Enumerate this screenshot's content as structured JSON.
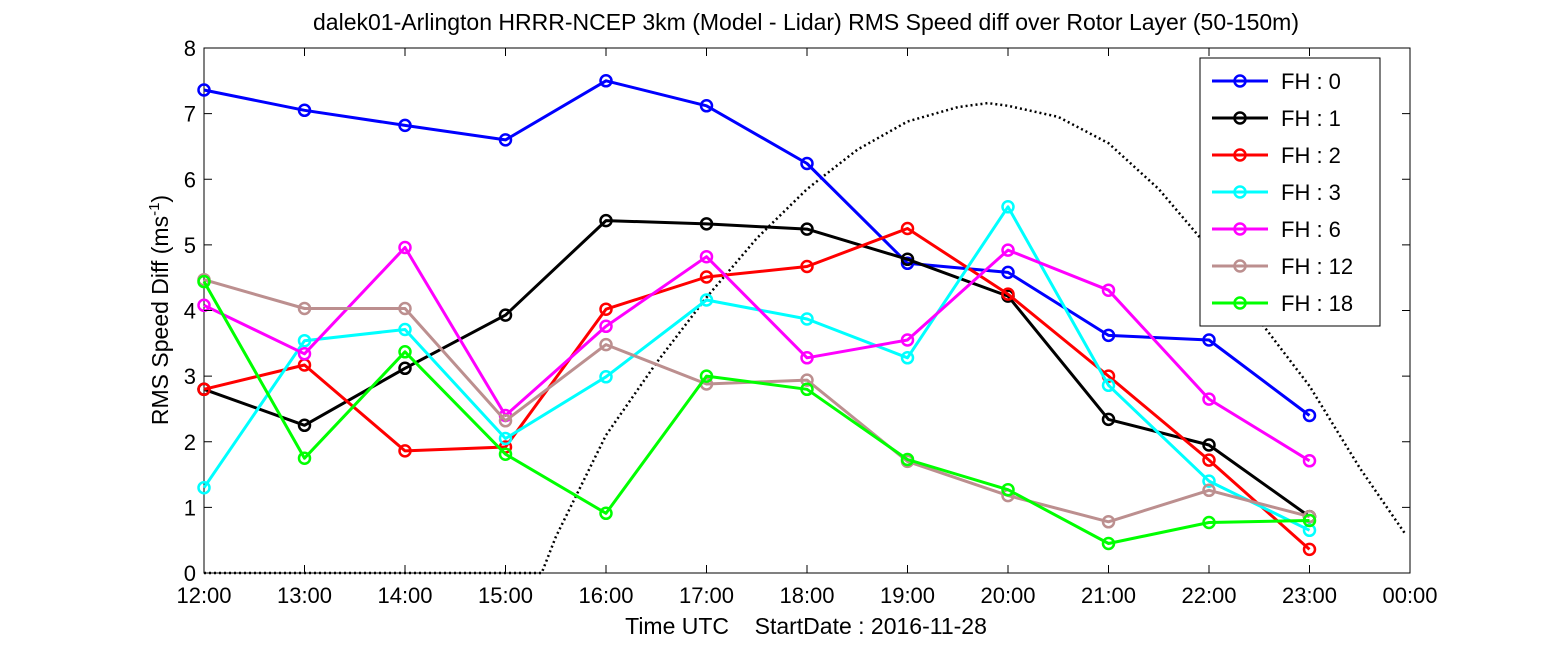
{
  "chart_data": {
    "type": "line",
    "title": "dalek01-Arlington HRRR-NCEP 3km (Model - Lidar) RMS Speed diff over Rotor Layer (50-150m)",
    "xlabel": "Time UTC    StartDate : 2016-11-28",
    "ylabel_main": "RMS Speed Diff (ms",
    "ylabel_sup": "-1",
    "ylabel_close": ")",
    "x_tick_labels": [
      "12:00",
      "13:00",
      "14:00",
      "15:00",
      "16:00",
      "17:00",
      "18:00",
      "19:00",
      "20:00",
      "21:00",
      "22:00",
      "23:00",
      "00:00"
    ],
    "y_tick_labels": [
      "0",
      "1",
      "2",
      "3",
      "4",
      "5",
      "6",
      "7",
      "8"
    ],
    "x_hours": [
      12,
      13,
      14,
      15,
      16,
      17,
      18,
      19,
      20,
      21,
      22,
      23
    ],
    "xlim": [
      12,
      24
    ],
    "ylim": [
      0,
      8
    ],
    "grid": false,
    "legend_position": "top-right",
    "series": [
      {
        "name": "FH : 0",
        "color": "#0000ff",
        "values": [
          7.36,
          7.05,
          6.82,
          6.6,
          7.5,
          7.12,
          6.24,
          4.72,
          4.58,
          3.62,
          3.55,
          2.4
        ]
      },
      {
        "name": "FH : 1",
        "color": "#000000",
        "values": [
          2.8,
          2.25,
          3.12,
          3.93,
          5.37,
          5.32,
          5.24,
          4.78,
          4.22,
          2.34,
          1.95,
          0.86
        ]
      },
      {
        "name": "FH : 2",
        "color": "#ff0000",
        "values": [
          2.8,
          3.17,
          1.86,
          1.92,
          4.02,
          4.51,
          4.67,
          5.25,
          4.25,
          3.0,
          1.72,
          0.36
        ]
      },
      {
        "name": "FH : 3",
        "color": "#00ffff",
        "values": [
          1.3,
          3.54,
          3.71,
          2.05,
          2.99,
          4.16,
          3.87,
          3.28,
          5.58,
          2.86,
          1.4,
          0.65
        ]
      },
      {
        "name": "FH : 6",
        "color": "#ff00ff",
        "values": [
          4.08,
          3.34,
          4.96,
          2.4,
          3.76,
          4.82,
          3.28,
          3.55,
          4.92,
          4.31,
          2.65,
          1.71
        ]
      },
      {
        "name": "FH : 12",
        "color": "#bc8f8f",
        "values": [
          4.47,
          4.03,
          4.03,
          2.32,
          3.48,
          2.88,
          2.94,
          1.7,
          1.18,
          0.78,
          1.26,
          0.86
        ]
      },
      {
        "name": "FH : 18",
        "color": "#00ff00",
        "values": [
          4.44,
          1.75,
          3.37,
          1.81,
          0.91,
          3.0,
          2.8,
          1.73,
          1.27,
          0.45,
          0.77,
          0.8
        ]
      }
    ],
    "reference_curve": {
      "style": "dotted",
      "color": "#000000",
      "x": [
        12,
        12.5,
        13,
        13.5,
        14,
        14.5,
        15,
        15.36,
        15.5,
        16,
        16.5,
        17,
        17.5,
        18,
        18.5,
        19,
        19.5,
        19.8,
        20,
        20.5,
        21,
        21.5,
        22,
        22.5,
        23,
        23.5,
        23.95
      ],
      "y": [
        0,
        0,
        0,
        0,
        0,
        0,
        0,
        0,
        0.55,
        2.1,
        3.2,
        4.2,
        5.1,
        5.85,
        6.45,
        6.88,
        7.1,
        7.16,
        7.12,
        6.95,
        6.55,
        5.85,
        4.95,
        3.85,
        2.85,
        1.6,
        0.6
      ]
    }
  }
}
